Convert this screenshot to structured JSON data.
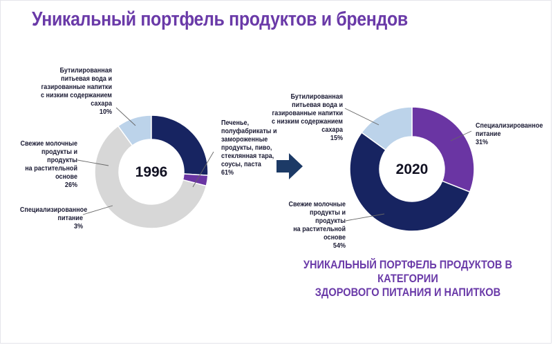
{
  "title": "Уникальный портфель продуктов и брендов",
  "caption": {
    "line1": "УНИКАЛЬНЫЙ ПОРТФЕЛЬ ПРОДУКТОВ В КАТЕГОРИИ",
    "line2": "ЗДОРОВОГО ПИТАНИЯ И НАПИТКОВ"
  },
  "colors": {
    "water": "#bcd3ea",
    "dairy": "#172461",
    "special": "#6a35a3",
    "other": "#d7d7d7",
    "arrow": "#1c3a66"
  },
  "labels_1996": {
    "water": [
      "Бутилированная",
      "питьевая вода и",
      "газированные напитки",
      "с низким содержанием",
      "сахара"
    ],
    "water_pct": "10%",
    "dairy": [
      "Свежие молочные",
      "продукты и продукты",
      "на растительной",
      "основе"
    ],
    "dairy_pct": "26%",
    "special": [
      "Специализированное",
      "питание"
    ],
    "special_pct": "3%",
    "other": [
      "Печенье,",
      "полуфабрикаты и",
      "замороженные",
      "продукты, пиво,",
      "стеклянная тара,",
      "соусы, паста"
    ],
    "other_pct": "61%"
  },
  "labels_2020": {
    "water": [
      "Бутилированная",
      "питьевая вода и",
      "газированные напитки",
      "с низким содержанием",
      "сахара"
    ],
    "water_pct": "15%",
    "special": [
      "Специализированное",
      "питание"
    ],
    "special_pct": "31%",
    "dairy": [
      "Свежие молочные",
      "продукты и продукты",
      "на растительной",
      "основе"
    ],
    "dairy_pct": "54%"
  },
  "chart_data": [
    {
      "type": "pie",
      "title": "1996",
      "categories": [
        "Бутилированная питьевая вода и газированные напитки с низким содержанием сахара",
        "Свежие молочные продукты и продукты на растительной основе",
        "Специализированное питание",
        "Печенье, полуфабрикаты и замороженные продукты, пиво, стеклянная тара, соусы, паста"
      ],
      "values": [
        10,
        26,
        3,
        61
      ],
      "keys": [
        "water",
        "dairy",
        "special",
        "other"
      ]
    },
    {
      "type": "pie",
      "title": "2020",
      "categories": [
        "Специализированное питание",
        "Свежие молочные продукты и продукты на растительной основе",
        "Бутилированная питьевая вода и газированные напитки с низким содержанием сахара"
      ],
      "values": [
        31,
        54,
        15
      ],
      "keys": [
        "special",
        "dairy",
        "water"
      ]
    }
  ]
}
